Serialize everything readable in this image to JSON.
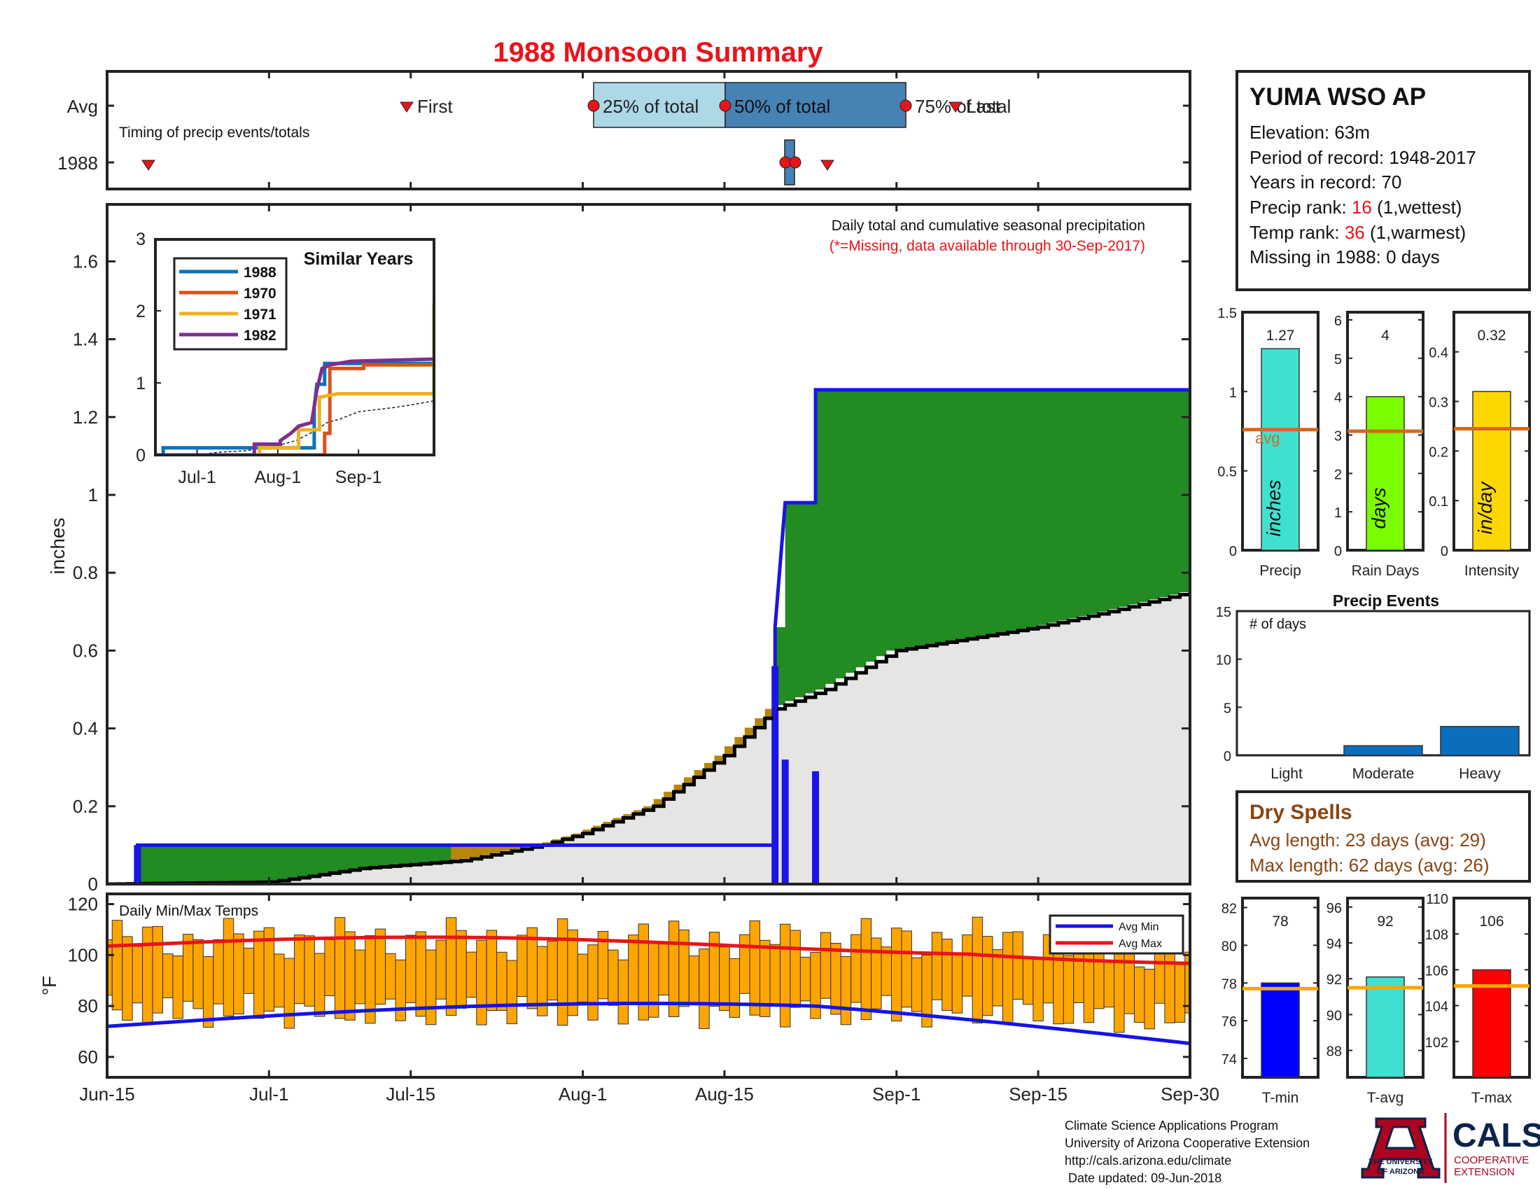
{
  "title": "1988 Monsoon Summary",
  "colors": {
    "title": "#e8141a",
    "cum_blue": "#1a14e6",
    "cum_black": "#000000",
    "green_fill": "#228b22",
    "brown_fill": "#b8860b",
    "gray_fill": "#e6e5e3",
    "q25": "#add8e6",
    "q50_75": "#4682b4",
    "marker_red": "#e8141a",
    "temp_bar": "#ffa500",
    "avg_min_line": "#1414e6",
    "avg_max_line": "#e8141a",
    "precip_bar": "#40e0d0",
    "raindays_bar": "#7cfc00",
    "intensity_bar": "#ffd700",
    "avg_line_panel": "#d2691e",
    "events_bar": "#0a6ebd",
    "tmin_bar": "#0000ff",
    "tavg_bar": "#40e0d0",
    "tmax_bar": "#ff0000",
    "temp_avg_line": "#ffa500",
    "dry_text": "#8b4513",
    "ua_red": "#ab0520",
    "ua_blue": "#0c234b"
  },
  "timing": {
    "label": "Timing of precip events/totals",
    "row_labels": [
      "Avg",
      "1988"
    ],
    "avg_markers": {
      "first": "First",
      "q25": "25% of total",
      "q50": "50% of total",
      "q75": "75% of total",
      "last": "Last"
    }
  },
  "main": {
    "ylabel": "inches",
    "yticks": [
      "0",
      "0.2",
      "0.4",
      "0.6",
      "0.8",
      "1",
      "1.2",
      "1.4",
      "1.6"
    ],
    "note1": "Daily total and cumulative seasonal precipitation",
    "note2": "(*=Missing, data available through 30-Sep-2017)"
  },
  "inset": {
    "title": "Similar Years",
    "yticks": [
      "0",
      "1",
      "2",
      "3"
    ],
    "xticks": [
      "Jul-1",
      "Aug-1",
      "Sep-1"
    ],
    "legend": [
      "1988",
      "1970",
      "1971",
      "1982"
    ]
  },
  "temps": {
    "label": "Daily Min/Max Temps",
    "ylabel": "°F",
    "yticks": [
      "60",
      "80",
      "100",
      "120"
    ],
    "legend": [
      "Avg Min",
      "Avg Max"
    ]
  },
  "xaxis": {
    "ticks": [
      "Jun-15",
      "Jul-1",
      "Jul-15",
      "Aug-1",
      "Aug-15",
      "Sep-1",
      "Sep-15",
      "Sep-30"
    ]
  },
  "station": {
    "name": "YUMA WSO AP",
    "elevation": "Elevation: 63m",
    "period": "Period of record: 1948-2017",
    "years": "Years in record: 70",
    "precip_rank_label": "Precip rank: ",
    "precip_rank_value": "16",
    "precip_rank_note": " (1,wettest)",
    "temp_rank_label": "Temp rank: ",
    "temp_rank_value": "36",
    "temp_rank_note": " (1,warmest)",
    "missing": "Missing in 1988: 0 days"
  },
  "panels": {
    "precip": {
      "value_label": "1.27",
      "value": 1.27,
      "avg": 0.76,
      "unit": "inches",
      "xlabel": "Precip",
      "avg_label": "avg",
      "yticks": [
        "0",
        "0.5",
        "1",
        "1.5"
      ]
    },
    "raindays": {
      "value_label": "4",
      "value": 4,
      "avg": 3.1,
      "unit": "days",
      "xlabel": "Rain Days",
      "yticks": [
        "0",
        "1",
        "2",
        "3",
        "4",
        "5",
        "6"
      ]
    },
    "intensity": {
      "value_label": "0.32",
      "value": 0.32,
      "avg": 0.245,
      "unit": "in/day",
      "xlabel": "Intensity",
      "yticks": [
        "0",
        "0.1",
        "0.2",
        "0.3",
        "0.4"
      ]
    }
  },
  "events": {
    "title": "Precip Events",
    "ylabel": "# of days",
    "yticks": [
      "0",
      "5",
      "10",
      "15"
    ],
    "categories": [
      "Light",
      "Moderate",
      "Heavy"
    ],
    "values": [
      0,
      1,
      3
    ]
  },
  "dry": {
    "title": "Dry Spells",
    "avg_length": "Avg length: 23 days (avg: 29)",
    "max_length": "Max length: 62 days (avg: 26)"
  },
  "temp_panels": {
    "tmin": {
      "value_label": "78",
      "value": 78.0,
      "avg": 77.7,
      "xlabel": "T-min",
      "yticks": [
        "74",
        "76",
        "78",
        "80",
        "82"
      ]
    },
    "tavg": {
      "value_label": "92",
      "value": 92.1,
      "avg": 91.5,
      "xlabel": "T-avg",
      "yticks": [
        "88",
        "90",
        "92",
        "94",
        "96"
      ]
    },
    "tmax": {
      "value_label": "106",
      "value": 106.0,
      "avg": 105.1,
      "xlabel": "T-max",
      "yticks": [
        "102",
        "104",
        "106",
        "108",
        "110"
      ]
    }
  },
  "footer": {
    "lines": [
      "Climate Science Applications Program",
      "University of Arizona Cooperative Extension",
      "http://cals.arizona.edu/climate",
      " Date updated: 09-Jun-2018"
    ],
    "ua_line1": "THE UNIVERSITY",
    "ua_line2": "OF ARIZONA",
    "cals": "CALS",
    "cals_sub1": "COOPERATIVE",
    "cals_sub2": "EXTENSION"
  },
  "chart_data": {
    "type": "area",
    "title": "1988 Monsoon Summary",
    "ylabel": "inches",
    "ylim": [
      0,
      1.75
    ],
    "x_range": [
      "Jun-15",
      "Sep-30"
    ],
    "series": [
      {
        "name": "1988",
        "points": [
          [
            "Jun-18",
            0.1
          ],
          [
            "Aug-20",
            0.1
          ],
          [
            "Aug-20",
            0.66
          ],
          [
            "Aug-21",
            0.98
          ],
          [
            "Aug-24",
            0.98
          ],
          [
            "Aug-24",
            1.27
          ],
          [
            "Sep-30",
            1.27
          ]
        ]
      },
      {
        "name": "Avg",
        "points": [
          [
            "Jun-15",
            0.0
          ],
          [
            "Jul-1",
            0.005
          ],
          [
            "Jul-5",
            0.02
          ],
          [
            "Jul-10",
            0.04
          ],
          [
            "Jul-20",
            0.06
          ],
          [
            "Jul-28",
            0.1
          ],
          [
            "Aug-1",
            0.13
          ],
          [
            "Aug-8",
            0.2
          ],
          [
            "Aug-15",
            0.33
          ],
          [
            "Aug-20",
            0.45
          ],
          [
            "Aug-25",
            0.5
          ],
          [
            "Sep-1",
            0.6
          ],
          [
            "Sep-8",
            0.63
          ],
          [
            "Sep-15",
            0.66
          ],
          [
            "Sep-22",
            0.7
          ],
          [
            "Sep-30",
            0.75
          ]
        ]
      }
    ],
    "daily_bars": [
      [
        "Jun-18",
        0.1
      ],
      [
        "Aug-20",
        0.56
      ],
      [
        "Aug-21",
        0.32
      ],
      [
        "Aug-24",
        0.29
      ]
    ]
  }
}
